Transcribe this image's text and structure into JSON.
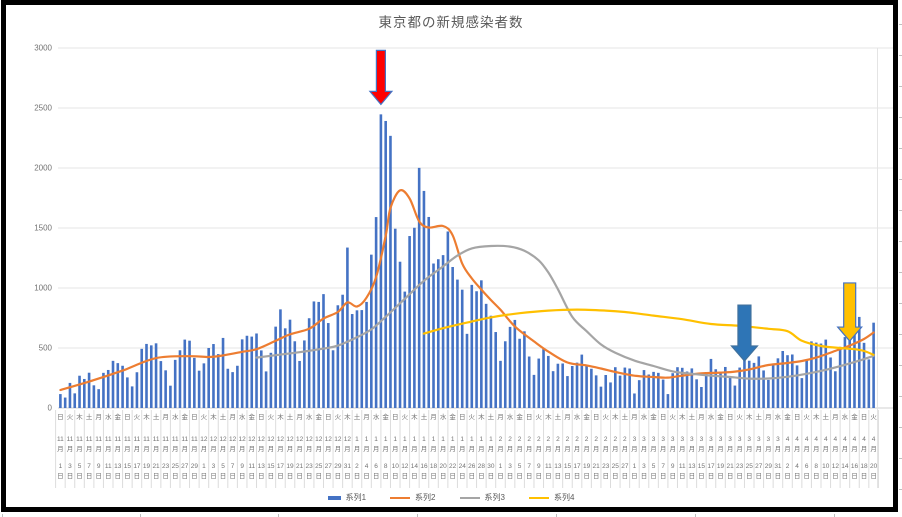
{
  "window": {
    "background": "#FFFFFF",
    "frame_border_color": "#000000"
  },
  "chart_data": {
    "type": "combo-bar-line",
    "title": "東京都の新規感染者数",
    "ylim": [
      0,
      3000
    ],
    "yticks": [
      0,
      500,
      1000,
      1500,
      2000,
      2500,
      3000
    ],
    "grid": "horizontal",
    "legend_position": "bottom",
    "legend": [
      "系列1",
      "系列2",
      "系列3",
      "系列4"
    ],
    "x_axis": {
      "start_date": "11月1日",
      "end_date": "4月20日",
      "bar_interval": "daily",
      "label_interval_days": 2,
      "labels": [
        "日|11月1日",
        "火|11月3日",
        "木|11月5日",
        "土|11月7日",
        "月|11月9日",
        "水|11月11日",
        "金|11月13日",
        "日|11月15日",
        "火|11月17日",
        "木|11月19日",
        "土|11月21日",
        "月|11月23日",
        "水|11月25日",
        "金|11月27日",
        "日|11月29日",
        "火|12月1日",
        "木|12月3日",
        "土|12月5日",
        "月|12月7日",
        "水|12月9日",
        "金|12月11日",
        "日|12月13日",
        "火|12月15日",
        "木|12月17日",
        "土|12月19日",
        "月|12月21日",
        "水|12月23日",
        "金|12月25日",
        "日|12月27日",
        "火|12月29日",
        "木|12月31日",
        "土|1月2日",
        "月|1月4日",
        "水|1月6日",
        "金|1月8日",
        "日|1月10日",
        "火|1月12日",
        "木|1月14日",
        "土|1月16日",
        "月|1月18日",
        "水|1月20日",
        "金|1月22日",
        "日|1月24日",
        "火|1月26日",
        "木|1月28日",
        "土|1月30日",
        "月|2月1日",
        "水|2月3日",
        "金|2月5日",
        "日|2月7日",
        "火|2月9日",
        "木|2月11日",
        "土|2月13日",
        "月|2月15日",
        "水|2月17日",
        "金|2月19日",
        "日|2月21日",
        "火|2月23日",
        "木|2月25日",
        "土|2月27日",
        "月|3月1日",
        "水|3月3日",
        "金|3月5日",
        "日|3月7日",
        "火|3月9日",
        "木|3月11日",
        "土|3月13日",
        "月|3月15日",
        "水|3月17日",
        "金|3月19日",
        "日|3月21日",
        "火|3月23日",
        "木|3月25日",
        "土|3月27日",
        "月|3月29日",
        "水|3月31日",
        "金|4月2日",
        "日|4月4日",
        "火|4月6日",
        "木|4月8日",
        "土|4月10日",
        "月|4月12日",
        "水|4月14日",
        "金|4月16日",
        "日|4月18日",
        "火|4月20日"
      ]
    },
    "series": [
      {
        "name": "系列1",
        "type": "bar",
        "color": "#4472C4",
        "values": [
          116,
          87,
          209,
          122,
          269,
          242,
          294,
          189,
          157,
          293,
          317,
          393,
          374,
          352,
          255,
          180,
          298,
          493,
          534,
          522,
          539,
          391,
          314,
          186,
          401,
          481,
          570,
          561,
          418,
          311,
          372,
          500,
          533,
          449,
          584,
          327,
          299,
          352,
          572,
          602,
          595,
          621,
          480,
          305,
          460,
          678,
          822,
          664,
          736,
          556,
          392,
          563,
          748,
          888,
          884,
          949,
          708,
          481,
          856,
          944,
          1337,
          783,
          814,
          816,
          884,
          1278,
          1591,
          2447,
          2392,
          2268,
          1494,
          1219,
          970,
          1433,
          1502,
          2001,
          1809,
          1592,
          1204,
          1240,
          1274,
          1471,
          1175,
          1070,
          986,
          618,
          1026,
          973,
          1064,
          868,
          769,
          633,
          393,
          556,
          676,
          734,
          577,
          639,
          429,
          276,
          412,
          491,
          434,
          307,
          369,
          371,
          266,
          350,
          378,
          445,
          353,
          327,
          272,
          178,
          275,
          213,
          340,
          270,
          337,
          329,
          121,
          232,
          316,
          279,
          301,
          293,
          237,
          116,
          290,
          340,
          335,
          304,
          330,
          239,
          175,
          300,
          409,
          323,
          303,
          342,
          256,
          187,
          337,
          420,
          394,
          376,
          430,
          313,
          234,
          364,
          414,
          475,
          440,
          446,
          355,
          249,
          399,
          555,
          545,
          537,
          570,
          421,
          306,
          510,
          591,
          729,
          667,
          759,
          543,
          405,
          711
        ]
      },
      {
        "name": "系列2",
        "type": "line",
        "color": "#ED7D31",
        "points": [
          [
            0,
            150
          ],
          [
            6,
            220
          ],
          [
            13,
            312
          ],
          [
            20,
            416
          ],
          [
            27,
            432
          ],
          [
            31,
            425
          ],
          [
            34,
            438
          ],
          [
            38,
            468
          ],
          [
            41,
            490
          ],
          [
            45,
            560
          ],
          [
            48,
            613
          ],
          [
            52,
            660
          ],
          [
            55,
            745
          ],
          [
            58,
            800
          ],
          [
            60,
            880
          ],
          [
            62,
            846
          ],
          [
            64,
            919
          ],
          [
            66,
            1090
          ],
          [
            68,
            1435
          ],
          [
            69,
            1668
          ],
          [
            71,
            1813
          ],
          [
            73,
            1746
          ],
          [
            75,
            1555
          ],
          [
            77,
            1504
          ],
          [
            80,
            1517
          ],
          [
            82,
            1440
          ],
          [
            84,
            1203
          ],
          [
            86,
            1080
          ],
          [
            88,
            987
          ],
          [
            90,
            900
          ],
          [
            92,
            818
          ],
          [
            95,
            680
          ],
          [
            99,
            555
          ],
          [
            102,
            470
          ],
          [
            106,
            379
          ],
          [
            110,
            355
          ],
          [
            113,
            329
          ],
          [
            116,
            300
          ],
          [
            120,
            269
          ],
          [
            124,
            258
          ],
          [
            127,
            253
          ],
          [
            130,
            270
          ],
          [
            134,
            288
          ],
          [
            138,
            295
          ],
          [
            141,
            303
          ],
          [
            144,
            322
          ],
          [
            148,
            358
          ],
          [
            152,
            375
          ],
          [
            155,
            392
          ],
          [
            158,
            420
          ],
          [
            162,
            476
          ],
          [
            165,
            520
          ],
          [
            168,
            575
          ],
          [
            170,
            629
          ]
        ]
      },
      {
        "name": "系列3",
        "type": "line",
        "color": "#A5A5A5",
        "points": [
          [
            41,
            420
          ],
          [
            45,
            440
          ],
          [
            50,
            465
          ],
          [
            55,
            495
          ],
          [
            58,
            520
          ],
          [
            62,
            590
          ],
          [
            65,
            655
          ],
          [
            68,
            760
          ],
          [
            72,
            910
          ],
          [
            76,
            1060
          ],
          [
            80,
            1180
          ],
          [
            83,
            1270
          ],
          [
            86,
            1330
          ],
          [
            90,
            1350
          ],
          [
            94,
            1345
          ],
          [
            97,
            1310
          ],
          [
            100,
            1230
          ],
          [
            102,
            1130
          ],
          [
            104,
            990
          ],
          [
            107,
            760
          ],
          [
            110,
            640
          ],
          [
            113,
            530
          ],
          [
            116,
            460
          ],
          [
            120,
            395
          ],
          [
            124,
            350
          ],
          [
            128,
            305
          ],
          [
            132,
            285
          ],
          [
            136,
            270
          ],
          [
            140,
            258
          ],
          [
            144,
            245
          ],
          [
            148,
            246
          ],
          [
            152,
            260
          ],
          [
            156,
            285
          ],
          [
            160,
            318
          ],
          [
            164,
            360
          ],
          [
            167,
            395
          ],
          [
            170,
            435
          ]
        ]
      },
      {
        "name": "系列4",
        "type": "line",
        "color": "#FFC000",
        "points": [
          [
            76,
            620
          ],
          [
            80,
            665
          ],
          [
            85,
            712
          ],
          [
            90,
            755
          ],
          [
            96,
            790
          ],
          [
            102,
            812
          ],
          [
            108,
            820
          ],
          [
            114,
            812
          ],
          [
            118,
            800
          ],
          [
            124,
            770
          ],
          [
            130,
            740
          ],
          [
            136,
            700
          ],
          [
            142,
            685
          ],
          [
            148,
            660
          ],
          [
            152,
            640
          ],
          [
            155,
            560
          ],
          [
            159,
            517
          ],
          [
            163,
            500
          ],
          [
            166,
            490
          ],
          [
            168,
            475
          ],
          [
            170,
            443
          ]
        ]
      }
    ],
    "annotations": [
      {
        "name": "red-arrow",
        "shape": "down-arrow",
        "day": 67,
        "value_top": 2980,
        "value_tip": 2530,
        "fill": "#FF0000",
        "stroke": "#4472C4"
      },
      {
        "name": "blue-arrow",
        "shape": "down-arrow",
        "day": 143,
        "value_top": 858,
        "value_tip": 392,
        "fill": "#2E75B6",
        "stroke": "#41719C"
      },
      {
        "name": "yellow-arrow",
        "shape": "down-arrow",
        "day": 165,
        "value_top": 1042,
        "value_tip": 558,
        "fill": "#FFC000",
        "stroke": "#4472C4"
      }
    ]
  }
}
